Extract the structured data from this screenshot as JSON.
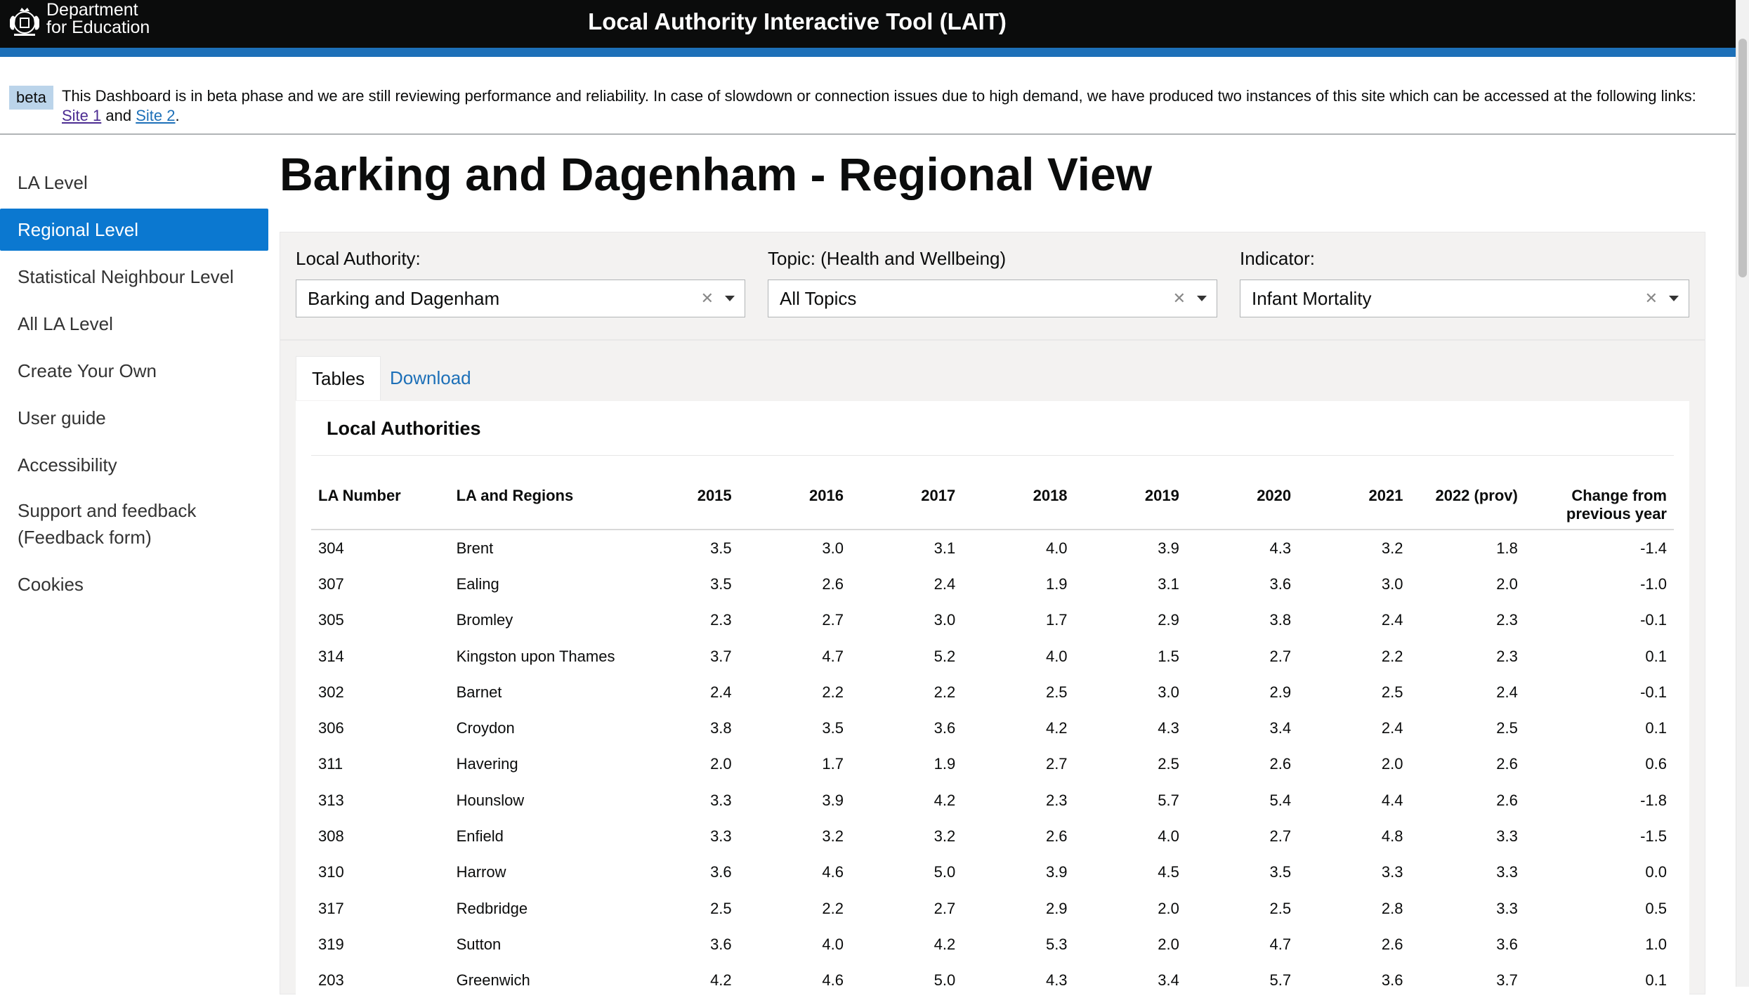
{
  "header": {
    "org_line1": "Department",
    "org_line2": "for Education",
    "app_title": "Local Authority Interactive Tool (LAIT)"
  },
  "beta_banner": {
    "tag": "beta",
    "message": "This Dashboard is in beta phase and we are still reviewing performance and reliability. In case of slowdown or connection issues due to high demand, we have produced two instances of this site which can be accessed at the following links:",
    "link1": "Site 1",
    "and_text": "and",
    "link2": "Site 2",
    "end": "."
  },
  "sidebar": {
    "items": [
      {
        "label": "LA Level"
      },
      {
        "label": "Regional Level"
      },
      {
        "label": "Statistical Neighbour Level"
      },
      {
        "label": "All LA Level"
      },
      {
        "label": "Create Your Own"
      },
      {
        "label": "User guide"
      },
      {
        "label": "Accessibility"
      },
      {
        "label": "Support and feedback (Feedback form)"
      },
      {
        "label": "Cookies"
      }
    ],
    "active_item": "Regional Level"
  },
  "page_title": "Barking and Dagenham - Regional View",
  "filters": {
    "local_authority": {
      "label": "Local Authority:",
      "value": "Barking and Dagenham"
    },
    "topic": {
      "label": "Topic:  (Health and Wellbeing)",
      "value": "All Topics"
    },
    "indicator": {
      "label": "Indicator:",
      "value": "Infant Mortality"
    }
  },
  "tabs": [
    {
      "label": "Tables"
    },
    {
      "label": "Download"
    }
  ],
  "table": {
    "title": "Local Authorities",
    "columns": [
      "LA Number",
      "LA and Regions",
      "2015",
      "2016",
      "2017",
      "2018",
      "2019",
      "2020",
      "2021",
      "2022 (prov)",
      "Change from previous year"
    ],
    "rows": [
      [
        "304",
        "Brent",
        "3.5",
        "3.0",
        "3.1",
        "4.0",
        "3.9",
        "4.3",
        "3.2",
        "1.8",
        "-1.4"
      ],
      [
        "307",
        "Ealing",
        "3.5",
        "2.6",
        "2.4",
        "1.9",
        "3.1",
        "3.6",
        "3.0",
        "2.0",
        "-1.0"
      ],
      [
        "305",
        "Bromley",
        "2.3",
        "2.7",
        "3.0",
        "1.7",
        "2.9",
        "3.8",
        "2.4",
        "2.3",
        "-0.1"
      ],
      [
        "314",
        "Kingston upon Thames",
        "3.7",
        "4.7",
        "5.2",
        "4.0",
        "1.5",
        "2.7",
        "2.2",
        "2.3",
        "0.1"
      ],
      [
        "302",
        "Barnet",
        "2.4",
        "2.2",
        "2.2",
        "2.5",
        "3.0",
        "2.9",
        "2.5",
        "2.4",
        "-0.1"
      ],
      [
        "306",
        "Croydon",
        "3.8",
        "3.5",
        "3.6",
        "4.2",
        "4.3",
        "3.4",
        "2.4",
        "2.5",
        "0.1"
      ],
      [
        "311",
        "Havering",
        "2.0",
        "1.7",
        "1.9",
        "2.7",
        "2.5",
        "2.6",
        "2.0",
        "2.6",
        "0.6"
      ],
      [
        "313",
        "Hounslow",
        "3.3",
        "3.9",
        "4.2",
        "2.3",
        "5.7",
        "5.4",
        "4.4",
        "2.6",
        "-1.8"
      ],
      [
        "308",
        "Enfield",
        "3.3",
        "3.2",
        "3.2",
        "2.6",
        "4.0",
        "2.7",
        "4.8",
        "3.3",
        "-1.5"
      ],
      [
        "310",
        "Harrow",
        "3.6",
        "4.6",
        "5.0",
        "3.9",
        "4.5",
        "3.5",
        "3.3",
        "3.3",
        "0.0"
      ],
      [
        "317",
        "Redbridge",
        "2.5",
        "2.2",
        "2.7",
        "2.9",
        "2.0",
        "2.5",
        "2.8",
        "3.3",
        "0.5"
      ],
      [
        "319",
        "Sutton",
        "3.6",
        "4.0",
        "4.2",
        "5.3",
        "2.0",
        "4.7",
        "2.6",
        "3.6",
        "1.0"
      ],
      [
        "203",
        "Greenwich",
        "4.2",
        "4.6",
        "5.0",
        "4.3",
        "3.4",
        "5.7",
        "3.6",
        "3.7",
        "0.1"
      ]
    ]
  }
}
